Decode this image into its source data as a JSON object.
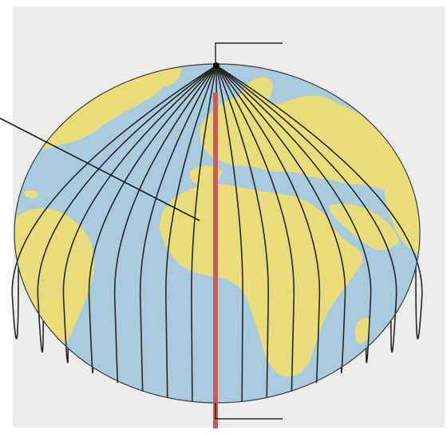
{
  "figure": {
    "kind": "globe-meridian-illustration",
    "labels": []
  },
  "colors": {
    "panel_background": "#ececec",
    "ocean": "#a9cbdd",
    "land": "#e9dc7a",
    "graticule": "#262626",
    "highlighted_meridian": "#cd5a55",
    "leader_line": "#1a1a1a",
    "pole_dot": "#000000"
  },
  "icons": {
    "globe": "globe-icon",
    "north_pole": "pole-dot-icon"
  }
}
